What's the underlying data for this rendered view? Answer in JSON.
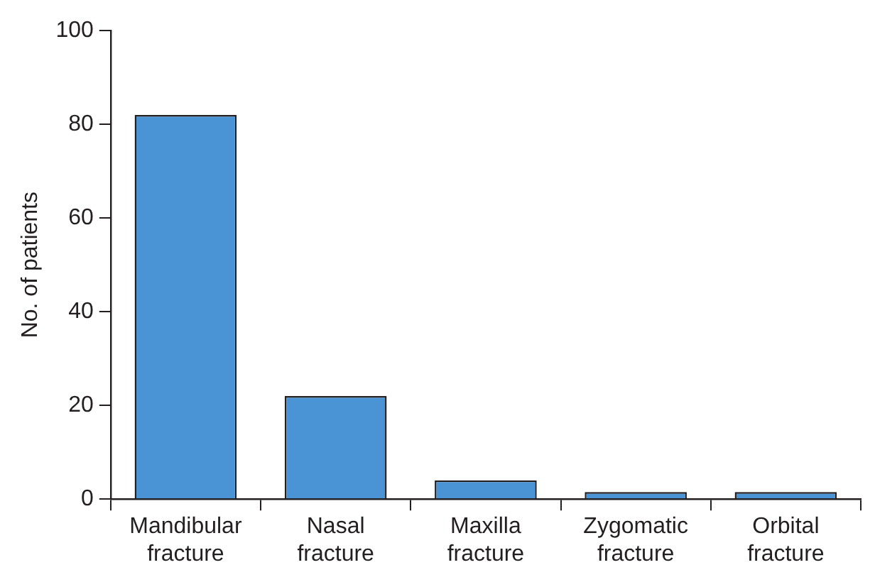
{
  "chart_data": {
    "type": "bar",
    "ylabel": "No. of patients",
    "categories": [
      "Mandibular fracture",
      "Nasal fracture",
      "Maxilla fracture",
      "Zygomatic fracture",
      "Orbital fracture"
    ],
    "values": [
      82,
      22,
      4,
      1.5,
      1.5
    ],
    "color": "#4a93d4",
    "ylim": [
      0,
      100
    ],
    "yticks": [
      0,
      20,
      40,
      60,
      80,
      100
    ],
    "grid": false,
    "legend": false
  }
}
